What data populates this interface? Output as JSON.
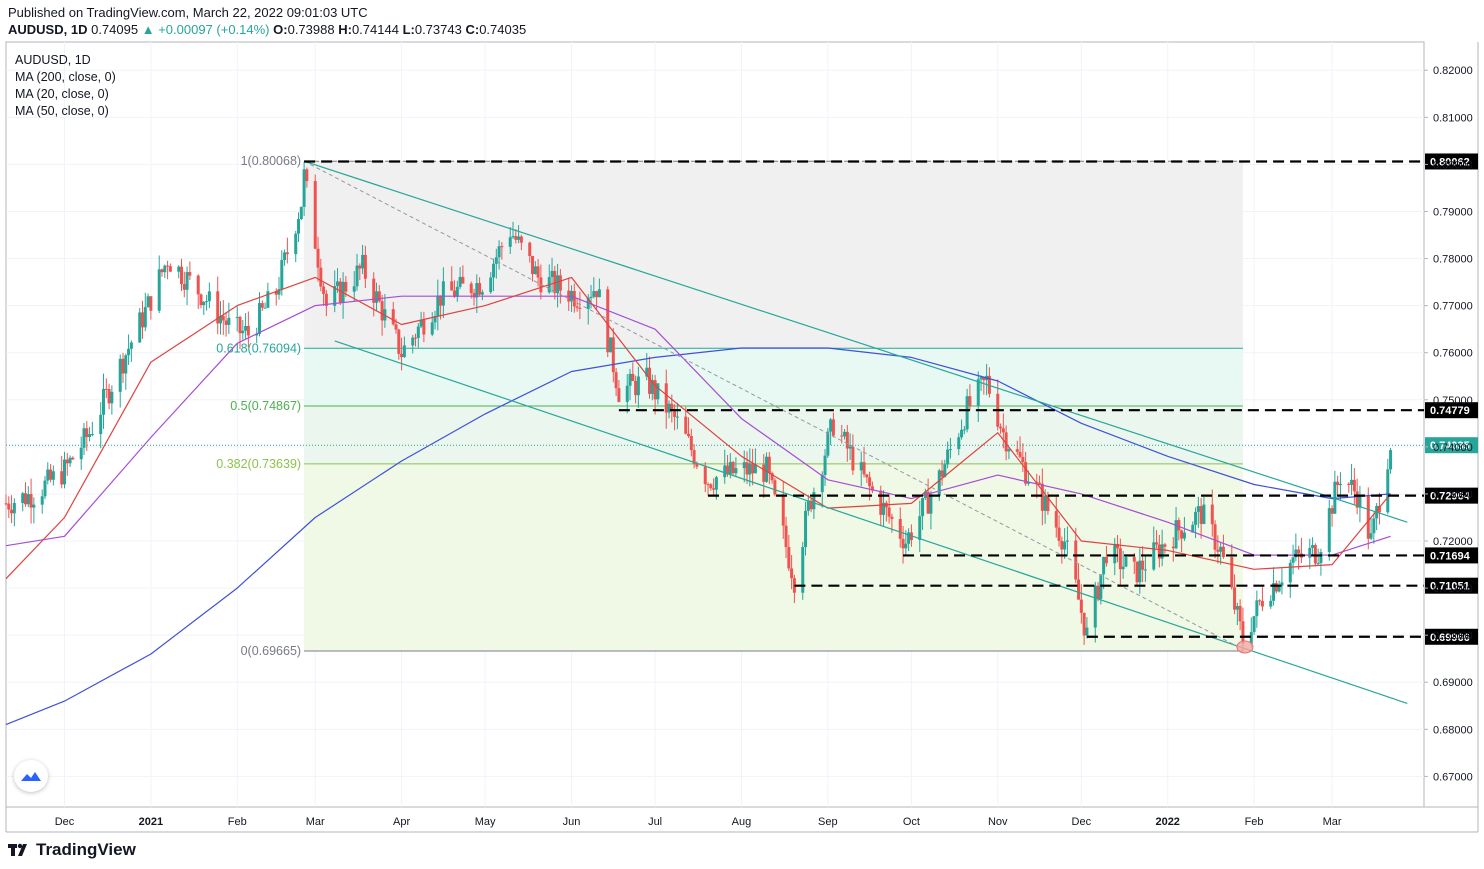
{
  "header": {
    "published": "Published on TradingView.com, March 22, 2022 09:01:03 UTC",
    "symbol": "AUDUSD, 1D",
    "last": "0.74095",
    "change": "▲ +0.00097 (+0.14%)",
    "o_label": "O:",
    "o": "0.73988",
    "h_label": "H:",
    "h": "0.74144",
    "l_label": "L:",
    "l": "0.73743",
    "c_label": "C:",
    "c": "0.74035"
  },
  "legend": {
    "symbol": "AUDUSD, 1D",
    "ma200": "MA (200, close, 0)",
    "ma20": "MA (20, close, 0)",
    "ma50": "MA (50, close, 0)"
  },
  "footer": {
    "brand": "TradingView"
  },
  "colors": {
    "up": "#26a69a",
    "down": "#ef5350",
    "ma200": "#3f51d9",
    "ma20": "#e0423d",
    "ma50": "#a64dd6",
    "fib_line": "#26a69a",
    "channel": "#26a69a"
  },
  "chart_data": {
    "type": "candlestick",
    "symbol": "AUDUSD",
    "interval": "1D",
    "ylim": [
      0.6635,
      0.826
    ],
    "y_ticks": [
      "0.82000",
      "0.81000",
      "0.80000",
      "0.79000",
      "0.78000",
      "0.77000",
      "0.76000",
      "0.75000",
      "0.74000",
      "0.73000",
      "0.72000",
      "0.71000",
      "0.70000",
      "0.69000",
      "0.68000",
      "0.67000"
    ],
    "x_ticks": [
      "Dec",
      "2021",
      "Feb",
      "Mar",
      "Apr",
      "May",
      "Jun",
      "Jul",
      "Aug",
      "Sep",
      "Oct",
      "Nov",
      "Dec",
      "2022",
      "Feb",
      "Mar"
    ],
    "x_tick_dates": [
      "2020-12-01",
      "2021-01-01",
      "2021-02-01",
      "2021-03-01",
      "2021-04-01",
      "2021-05-01",
      "2021-06-01",
      "2021-07-01",
      "2021-08-01",
      "2021-09-01",
      "2021-10-01",
      "2021-11-01",
      "2021-12-01",
      "2022-01-01",
      "2022-02-01",
      "2022-03-01"
    ],
    "closes_path": [
      [
        "2020-11-10",
        0.728
      ],
      [
        "2020-11-20",
        0.73
      ],
      [
        "2020-12-01",
        0.735
      ],
      [
        "2020-12-10",
        0.743
      ],
      [
        "2020-12-20",
        0.756
      ],
      [
        "2020-12-31",
        0.77
      ],
      [
        "2021-01-07",
        0.78
      ],
      [
        "2021-01-20",
        0.772
      ],
      [
        "2021-01-30",
        0.765
      ],
      [
        "2021-02-05",
        0.764
      ],
      [
        "2021-02-15",
        0.773
      ],
      [
        "2021-02-24",
        0.792
      ],
      [
        "2021-02-25",
        0.7975
      ],
      [
        "2021-03-05",
        0.77
      ],
      [
        "2021-03-18",
        0.778
      ],
      [
        "2021-04-01",
        0.76
      ],
      [
        "2021-04-15",
        0.772
      ],
      [
        "2021-04-30",
        0.775
      ],
      [
        "2021-05-10",
        0.786
      ],
      [
        "2021-05-20",
        0.776
      ],
      [
        "2021-06-03",
        0.772
      ],
      [
        "2021-06-10",
        0.774
      ],
      [
        "2021-06-18",
        0.752
      ],
      [
        "2021-06-28",
        0.754
      ],
      [
        "2021-07-08",
        0.746
      ],
      [
        "2021-07-20",
        0.733
      ],
      [
        "2021-08-01",
        0.735
      ],
      [
        "2021-08-10",
        0.735
      ],
      [
        "2021-08-20",
        0.712
      ],
      [
        "2021-08-25",
        0.727
      ],
      [
        "2021-09-03",
        0.745
      ],
      [
        "2021-09-15",
        0.732
      ],
      [
        "2021-09-29",
        0.72
      ],
      [
        "2021-10-10",
        0.732
      ],
      [
        "2021-10-21",
        0.748
      ],
      [
        "2021-10-28",
        0.754
      ],
      [
        "2021-11-03",
        0.743
      ],
      [
        "2021-11-15",
        0.731
      ],
      [
        "2021-11-25",
        0.72
      ],
      [
        "2021-12-03",
        0.7
      ],
      [
        "2021-12-10",
        0.718
      ],
      [
        "2021-12-20",
        0.713
      ],
      [
        "2022-01-04",
        0.722
      ],
      [
        "2022-01-13",
        0.726
      ],
      [
        "2022-01-20",
        0.718
      ],
      [
        "2022-01-28",
        0.699
      ],
      [
        "2022-02-04",
        0.708
      ],
      [
        "2022-02-15",
        0.716
      ],
      [
        "2022-02-24",
        0.718
      ],
      [
        "2022-03-04",
        0.734
      ],
      [
        "2022-03-10",
        0.73
      ],
      [
        "2022-03-15",
        0.72
      ],
      [
        "2022-03-22",
        0.741
      ]
    ],
    "ma20_path": [
      [
        "2020-11-10",
        0.712
      ],
      [
        "2020-12-01",
        0.725
      ],
      [
        "2021-01-01",
        0.758
      ],
      [
        "2021-02-01",
        0.77
      ],
      [
        "2021-03-01",
        0.776
      ],
      [
        "2021-04-01",
        0.766
      ],
      [
        "2021-05-01",
        0.77
      ],
      [
        "2021-06-01",
        0.776
      ],
      [
        "2021-07-01",
        0.753
      ],
      [
        "2021-08-01",
        0.738
      ],
      [
        "2021-09-01",
        0.727
      ],
      [
        "2021-10-01",
        0.728
      ],
      [
        "2021-11-01",
        0.743
      ],
      [
        "2021-12-01",
        0.72
      ],
      [
        "2022-01-01",
        0.718
      ],
      [
        "2022-02-01",
        0.714
      ],
      [
        "2022-03-01",
        0.715
      ],
      [
        "2022-03-22",
        0.73
      ]
    ],
    "ma50_path": [
      [
        "2020-11-10",
        0.719
      ],
      [
        "2020-12-01",
        0.721
      ],
      [
        "2021-01-01",
        0.742
      ],
      [
        "2021-02-01",
        0.762
      ],
      [
        "2021-03-01",
        0.77
      ],
      [
        "2021-04-01",
        0.772
      ],
      [
        "2021-05-01",
        0.772
      ],
      [
        "2021-06-01",
        0.772
      ],
      [
        "2021-07-01",
        0.765
      ],
      [
        "2021-08-01",
        0.746
      ],
      [
        "2021-09-01",
        0.733
      ],
      [
        "2021-10-01",
        0.729
      ],
      [
        "2021-11-01",
        0.734
      ],
      [
        "2021-12-01",
        0.73
      ],
      [
        "2022-01-01",
        0.724
      ],
      [
        "2022-02-01",
        0.717
      ],
      [
        "2022-03-01",
        0.717
      ],
      [
        "2022-03-22",
        0.721
      ]
    ],
    "ma200_path": [
      [
        "2020-11-10",
        0.681
      ],
      [
        "2020-12-01",
        0.686
      ],
      [
        "2021-01-01",
        0.696
      ],
      [
        "2021-02-01",
        0.71
      ],
      [
        "2021-03-01",
        0.725
      ],
      [
        "2021-04-01",
        0.737
      ],
      [
        "2021-05-01",
        0.747
      ],
      [
        "2021-06-01",
        0.756
      ],
      [
        "2021-07-01",
        0.759
      ],
      [
        "2021-08-01",
        0.761
      ],
      [
        "2021-09-01",
        0.761
      ],
      [
        "2021-10-01",
        0.759
      ],
      [
        "2021-11-01",
        0.754
      ],
      [
        "2021-12-01",
        0.745
      ],
      [
        "2022-01-01",
        0.738
      ],
      [
        "2022-02-01",
        0.732
      ],
      [
        "2022-03-01",
        0.729
      ],
      [
        "2022-03-22",
        0.73
      ]
    ],
    "fibonacci": {
      "start_date": "2021-02-25",
      "end_date": "2022-01-28",
      "levels": [
        {
          "label": "1(0.80068)",
          "value": 0.80068,
          "fill": "#f0f0f0"
        },
        {
          "label": "0.618(0.76094)",
          "value": 0.76094,
          "fill": "#e8f8f3"
        },
        {
          "label": "0.5(0.74867)",
          "value": 0.74867,
          "fill": "#eaf6ee"
        },
        {
          "label": "0.382(0.73639)",
          "value": 0.73639,
          "fill": "#f0f8e6"
        },
        {
          "label": "0(0.69665)",
          "value": 0.69665,
          "fill": "#f0f8e6"
        }
      ]
    },
    "channel_lines": [
      {
        "from": [
          "2021-02-25",
          0.80068
        ],
        "to": [
          "2022-03-28",
          0.724
        ]
      },
      {
        "from": [
          "2021-03-08",
          0.7625
        ],
        "to": [
          "2022-03-28",
          0.6855
        ]
      }
    ],
    "diagonal_dashed": {
      "from": [
        "2021-02-25",
        0.80068
      ],
      "to": [
        "2022-01-28",
        0.697
      ]
    },
    "horizontal_levels": [
      {
        "label": "0.80062",
        "value": 0.80062,
        "from_date": "2021-02-25"
      },
      {
        "label": "0.74779",
        "value": 0.74779,
        "from_date": "2021-06-18"
      },
      {
        "label": "0.72964",
        "value": 0.72964,
        "from_date": "2021-07-20"
      },
      {
        "label": "0.71694",
        "value": 0.71694,
        "from_date": "2021-09-28"
      },
      {
        "label": "0.71051",
        "value": 0.71051,
        "from_date": "2021-08-20"
      },
      {
        "label": "0.69966",
        "value": 0.69966,
        "from_date": "2021-12-03"
      }
    ],
    "last_price": {
      "label": "0.74035",
      "value": 0.74035
    },
    "highlight_low": {
      "date": "2022-01-28",
      "value": 0.6975
    }
  }
}
